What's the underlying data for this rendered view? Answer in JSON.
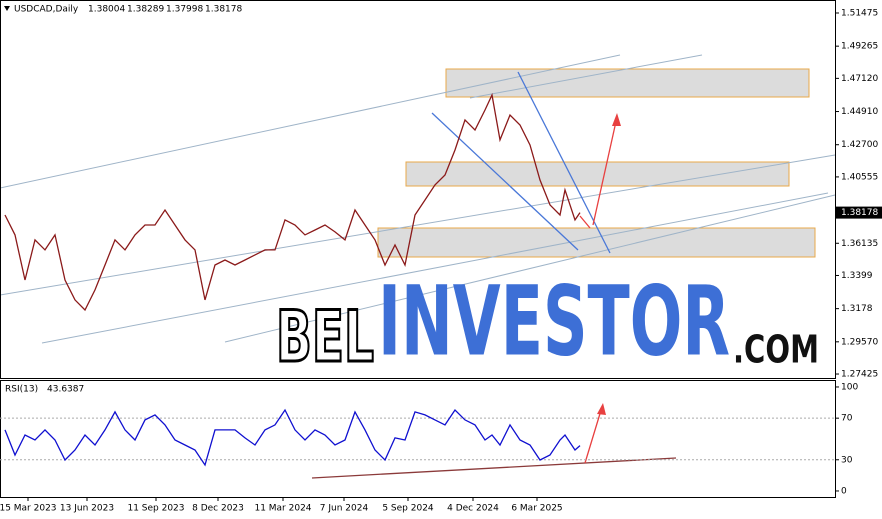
{
  "header": {
    "symbol": "USDCAD,Daily",
    "ohlc": [
      1.38004,
      1.38289,
      1.37998,
      1.38178
    ]
  },
  "watermark": {
    "part1": "BEL",
    "part2": "INVESTOR",
    "part3": ".COM"
  },
  "chart_data": [
    {
      "type": "line",
      "color": "#8b1a1a",
      "x": [
        5,
        15,
        25,
        35,
        45,
        55,
        65,
        75,
        85,
        95,
        105,
        115,
        125,
        135,
        145,
        155,
        165,
        175,
        185,
        195,
        205,
        215,
        225,
        235,
        245,
        255,
        265,
        275,
        285,
        295,
        305,
        315,
        325,
        335,
        345,
        355,
        365,
        375,
        385,
        395,
        405,
        415,
        425,
        435,
        445,
        455,
        465,
        475,
        485,
        492,
        500,
        510,
        520,
        530,
        540,
        550,
        560,
        565,
        575,
        580
      ],
      "values": [
        1.3802,
        1.3669,
        1.3369,
        1.3636,
        1.3569,
        1.3669,
        1.3369,
        1.3236,
        1.3169,
        1.3303,
        1.3469,
        1.3636,
        1.3569,
        1.3669,
        1.3735,
        1.3735,
        1.3835,
        1.3735,
        1.3636,
        1.3569,
        1.3236,
        1.3469,
        1.3502,
        1.3469,
        1.3502,
        1.3536,
        1.3569,
        1.3569,
        1.3769,
        1.3735,
        1.3669,
        1.3702,
        1.3735,
        1.3689,
        1.3636,
        1.3835,
        1.3735,
        1.3636,
        1.3469,
        1.3602,
        1.3469,
        1.3802,
        1.3902,
        1.4002,
        1.4068,
        1.4235,
        1.4435,
        1.4368,
        1.4501,
        1.4601,
        1.4302,
        1.4468,
        1.4401,
        1.4268,
        1.4035,
        1.3869,
        1.3802,
        1.3969,
        1.3769,
        1.38178
      ],
      "xlim": [
        0,
        835
      ],
      "ylim": [
        1.2716,
        1.5234
      ],
      "yticks": [
        1.51475,
        1.49265,
        {
          "value": 1.4712,
          "label": "1.47120"
        },
        {
          "value": 1.4491,
          "label": "1.44910"
        },
        {
          "value": 1.427,
          "label": "1.42700"
        },
        1.40555,
        1.36135,
        1.3399,
        1.3178,
        {
          "value": 1.2957,
          "label": "1.29570"
        },
        1.27425
      ]
    },
    {
      "type": "line",
      "color": "#1010d0",
      "indicator": "RSI(13)",
      "rsi_value": 43.6387,
      "x": [
        5,
        15,
        25,
        35,
        45,
        55,
        65,
        75,
        85,
        95,
        105,
        115,
        125,
        135,
        145,
        155,
        165,
        175,
        185,
        195,
        205,
        215,
        225,
        235,
        245,
        255,
        265,
        275,
        285,
        295,
        305,
        315,
        325,
        335,
        345,
        355,
        365,
        375,
        385,
        395,
        405,
        415,
        425,
        435,
        445,
        455,
        465,
        475,
        485,
        492,
        500,
        510,
        520,
        530,
        540,
        550,
        560,
        565,
        575,
        580
      ],
      "values": [
        58.7,
        34.6,
        53.8,
        49.0,
        58.7,
        49.0,
        29.8,
        39.4,
        53.8,
        44.2,
        58.7,
        76.0,
        58.7,
        49.0,
        68.3,
        73.1,
        63.5,
        49.0,
        44.2,
        39.4,
        25.0,
        58.7,
        58.7,
        58.7,
        51.0,
        44.2,
        58.7,
        63.5,
        77.9,
        58.7,
        49.0,
        58.7,
        53.8,
        44.2,
        49.0,
        76.0,
        58.7,
        39.4,
        29.8,
        51.0,
        49.0,
        76.0,
        73.1,
        68.3,
        63.5,
        77.9,
        68.3,
        63.5,
        49.0,
        53.8,
        44.2,
        63.5,
        49.0,
        44.2,
        29.8,
        34.6,
        49.0,
        53.8,
        39.4,
        43.6387
      ],
      "xlim": [
        0,
        835
      ],
      "ylim": [
        -5.8,
        106.7
      ],
      "yticks": [
        100,
        70,
        30,
        0
      ],
      "levels": [
        70,
        30
      ],
      "xticks": [
        {
          "value": 28,
          "label": "15 Mar 2023"
        },
        {
          "value": 87,
          "label": "13 Jun 2023"
        },
        {
          "value": 156,
          "label": "11 Sep 2023"
        },
        {
          "value": 218,
          "label": "8 Dec 2023"
        },
        {
          "value": 283,
          "label": "11 Mar 2024"
        },
        {
          "value": 344,
          "label": "7 Jun 2024"
        },
        {
          "value": 408,
          "label": "5 Sep 2024"
        },
        {
          "value": 473,
          "label": "4 Dec 2024"
        },
        {
          "value": 537,
          "label": "6 Mar 2025"
        }
      ]
    }
  ]
}
